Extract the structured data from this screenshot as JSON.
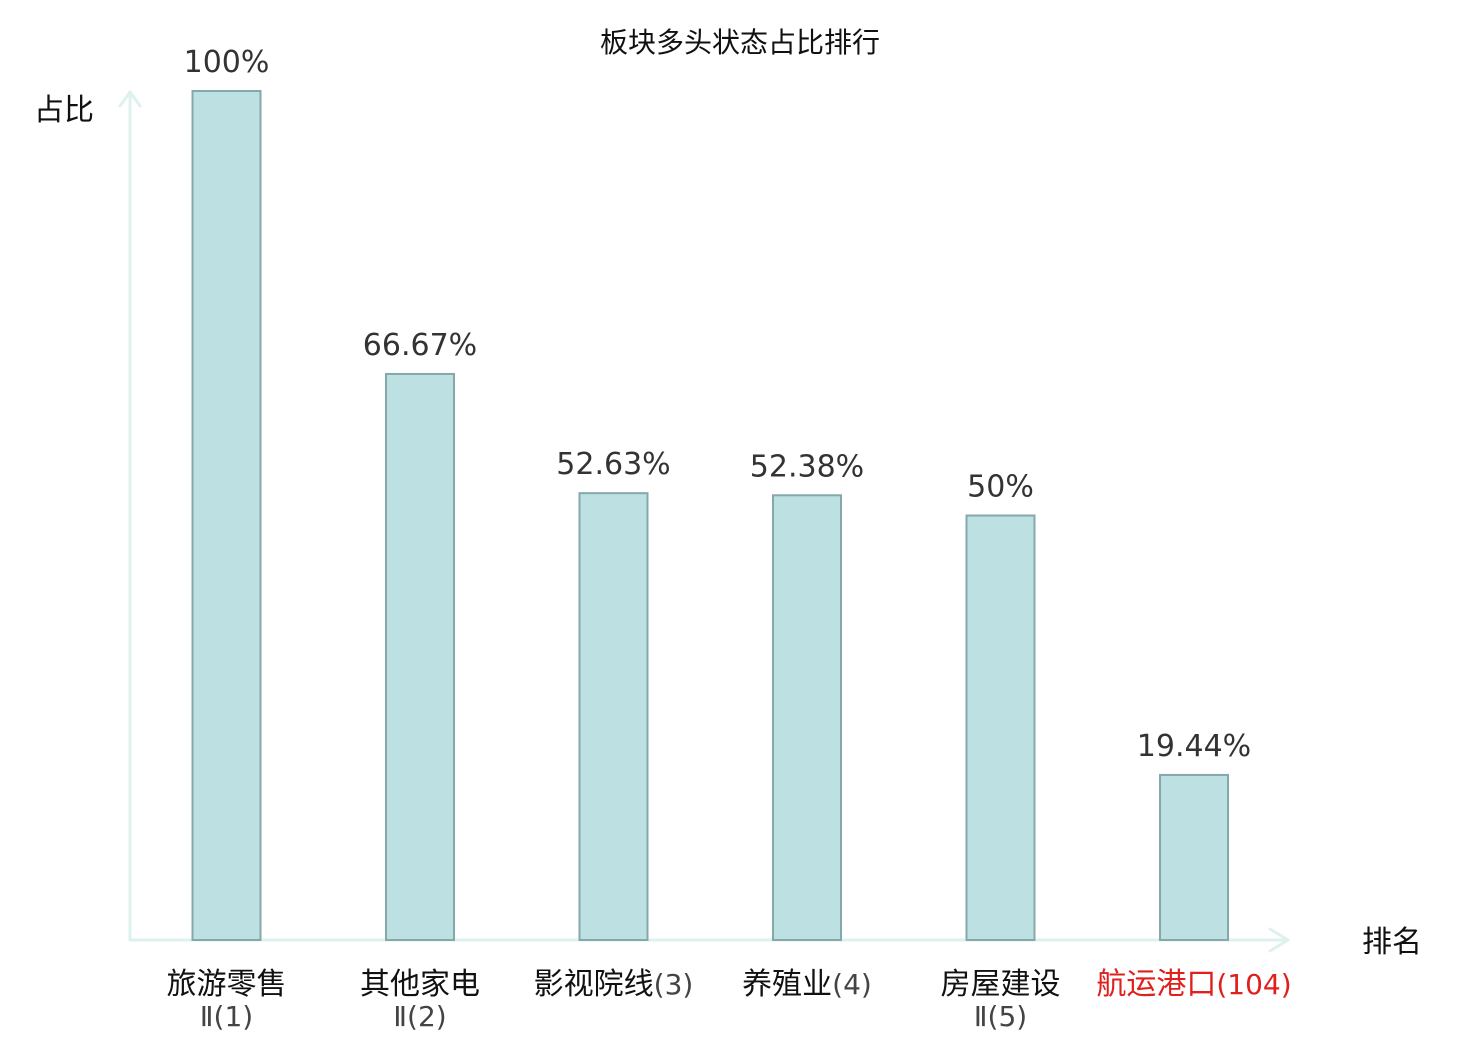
{
  "chart_data": {
    "type": "bar",
    "title": "板块多头状态占比排行",
    "ylabel": "占比",
    "xlabel": "排名",
    "ylim": [
      0,
      100
    ],
    "grid": false,
    "categories": [
      {
        "name": "旅游零售",
        "rank": "Ⅱ(1)",
        "highlight": false
      },
      {
        "name": "其他家电",
        "rank": "Ⅱ(2)",
        "highlight": false
      },
      {
        "name": "影视院线",
        "rank": "(3)",
        "highlight": false
      },
      {
        "name": "养殖业",
        "rank": "(4)",
        "highlight": false
      },
      {
        "name": "房屋建设",
        "rank": "Ⅱ(5)",
        "highlight": false
      },
      {
        "name": "航运港口",
        "rank": "(104)",
        "highlight": true
      }
    ],
    "values": [
      100,
      66.67,
      52.63,
      52.38,
      50,
      19.44
    ],
    "value_labels": [
      "100%",
      "66.67%",
      "52.63%",
      "52.38%",
      "50%",
      "19.44%"
    ],
    "colors": {
      "bar_fill": "#bde0e3",
      "bar_stroke": "#85a8ab",
      "axis": "#ddf1ee",
      "highlight_text": "#e0201c"
    }
  }
}
